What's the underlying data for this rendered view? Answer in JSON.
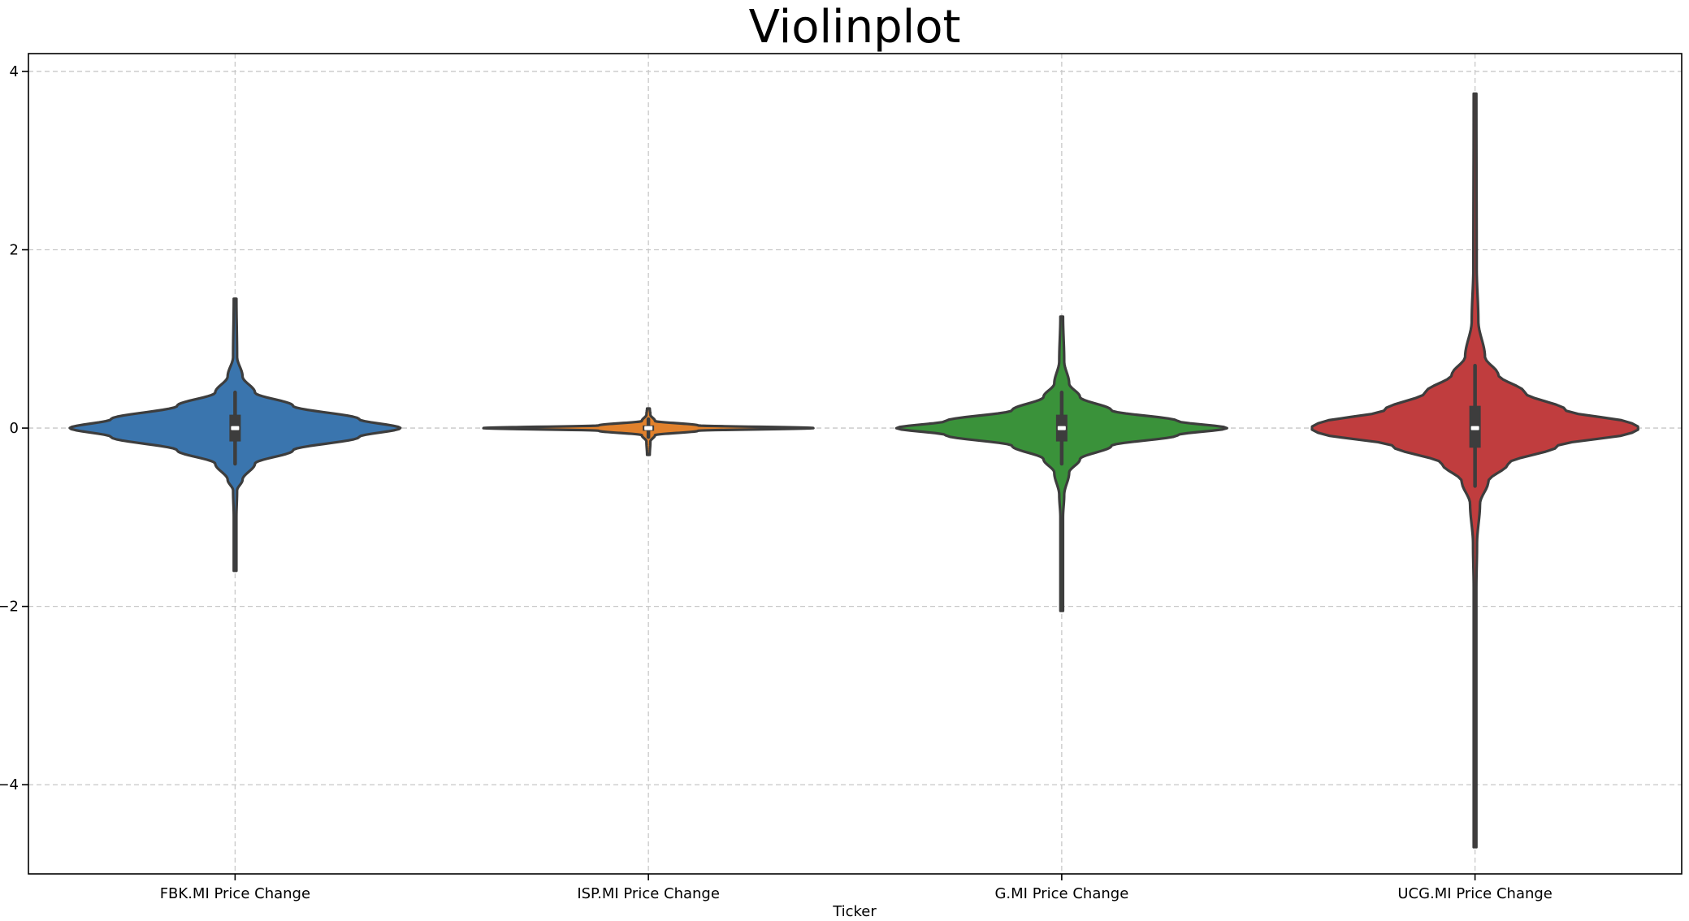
{
  "chart_data": {
    "type": "violin",
    "title": "Violinplot",
    "xlabel": "Ticker",
    "ylabel": "",
    "ylim": [
      -5.0,
      4.2
    ],
    "yticks": [
      -4,
      -2,
      0,
      2,
      4
    ],
    "ytick_labels": [
      "−4",
      "−2",
      "0",
      "2",
      "4"
    ],
    "grid": true,
    "categories": [
      "FBK.MI Price Change",
      "ISP.MI Price Change",
      "G.MI Price Change",
      "UCG.MI Price Change"
    ],
    "series": [
      {
        "color": "#3a75ae",
        "min": -1.6,
        "max": 1.45,
        "q1": -0.15,
        "median": 0.0,
        "q3": 0.15,
        "whisker_low": -0.4,
        "whisker_high": 0.4,
        "density_profile": [
          [
            -1.6,
            0.008
          ],
          [
            -1.0,
            0.008
          ],
          [
            -0.7,
            0.012
          ],
          [
            -0.58,
            0.045
          ],
          [
            -0.4,
            0.12
          ],
          [
            -0.25,
            0.35
          ],
          [
            -0.1,
            0.75
          ],
          [
            0.0,
            1.0
          ],
          [
            0.1,
            0.75
          ],
          [
            0.25,
            0.35
          ],
          [
            0.4,
            0.12
          ],
          [
            0.58,
            0.045
          ],
          [
            0.8,
            0.012
          ],
          [
            1.45,
            0.008
          ]
        ]
      },
      {
        "color": "#e1812c",
        "min": -0.3,
        "max": 0.22,
        "q1": -0.03,
        "median": 0.0,
        "q3": 0.03,
        "whisker_low": -0.1,
        "whisker_high": 0.1,
        "density_profile": [
          [
            -0.3,
            0.008
          ],
          [
            -0.15,
            0.012
          ],
          [
            -0.08,
            0.04
          ],
          [
            -0.03,
            0.3
          ],
          [
            0.0,
            1.0
          ],
          [
            0.03,
            0.3
          ],
          [
            0.08,
            0.04
          ],
          [
            0.15,
            0.012
          ],
          [
            0.22,
            0.008
          ]
        ]
      },
      {
        "color": "#3a923a",
        "min": -2.05,
        "max": 1.25,
        "q1": -0.15,
        "median": 0.0,
        "q3": 0.15,
        "whisker_low": -0.4,
        "whisker_high": 0.4,
        "density_profile": [
          [
            -2.05,
            0.008
          ],
          [
            -1.0,
            0.008
          ],
          [
            -0.75,
            0.015
          ],
          [
            -0.5,
            0.045
          ],
          [
            -0.35,
            0.11
          ],
          [
            -0.2,
            0.3
          ],
          [
            -0.08,
            0.7
          ],
          [
            0.0,
            1.0
          ],
          [
            0.08,
            0.7
          ],
          [
            0.2,
            0.3
          ],
          [
            0.35,
            0.11
          ],
          [
            0.5,
            0.045
          ],
          [
            0.75,
            0.015
          ],
          [
            1.25,
            0.008
          ]
        ]
      },
      {
        "color": "#c03d3e",
        "min": -4.7,
        "max": 3.75,
        "q1": -0.22,
        "median": 0.0,
        "q3": 0.25,
        "whisker_low": -0.65,
        "whisker_high": 0.7,
        "density_profile": [
          [
            -4.7,
            0.008
          ],
          [
            -1.8,
            0.008
          ],
          [
            -1.3,
            0.012
          ],
          [
            -0.85,
            0.03
          ],
          [
            -0.6,
            0.08
          ],
          [
            -0.4,
            0.2
          ],
          [
            -0.2,
            0.5
          ],
          [
            -0.05,
            0.95
          ],
          [
            0.0,
            1.0
          ],
          [
            0.05,
            0.95
          ],
          [
            0.2,
            0.55
          ],
          [
            0.4,
            0.3
          ],
          [
            0.6,
            0.14
          ],
          [
            0.8,
            0.06
          ],
          [
            1.2,
            0.02
          ],
          [
            1.8,
            0.01
          ],
          [
            3.75,
            0.008
          ]
        ]
      }
    ]
  }
}
